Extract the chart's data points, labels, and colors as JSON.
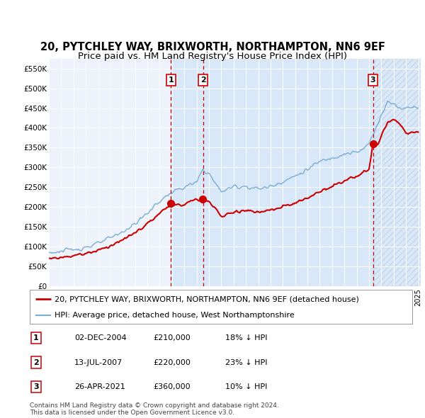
{
  "title": "20, PYTCHLEY WAY, BRIXWORTH, NORTHAMPTON, NN6 9EF",
  "subtitle": "Price paid vs. HM Land Registry's House Price Index (HPI)",
  "xlim": [
    1995.0,
    2025.2
  ],
  "ylim": [
    0,
    575000
  ],
  "yticks": [
    0,
    50000,
    100000,
    150000,
    200000,
    250000,
    300000,
    350000,
    400000,
    450000,
    500000,
    550000
  ],
  "ytick_labels": [
    "£0",
    "£50K",
    "£100K",
    "£150K",
    "£200K",
    "£250K",
    "£300K",
    "£350K",
    "£400K",
    "£450K",
    "£500K",
    "£550K"
  ],
  "transactions": [
    {
      "num": 1,
      "year": 2004.92,
      "price": 210000
    },
    {
      "num": 2,
      "year": 2007.53,
      "price": 220000
    },
    {
      "num": 3,
      "year": 2021.32,
      "price": 360000
    }
  ],
  "legend_line1": "20, PYTCHLEY WAY, BRIXWORTH, NORTHAMPTON, NN6 9EF (detached house)",
  "legend_line2": "HPI: Average price, detached house, West Northamptonshire",
  "table_rows": [
    {
      "num": "1",
      "date": "02-DEC-2004",
      "price": "£210,000",
      "hpi": "18% ↓ HPI"
    },
    {
      "num": "2",
      "date": "13-JUL-2007",
      "price": "£220,000",
      "hpi": "23% ↓ HPI"
    },
    {
      "num": "3",
      "date": "26-APR-2021",
      "price": "£360,000",
      "hpi": "10% ↓ HPI"
    }
  ],
  "footnote": "Contains HM Land Registry data © Crown copyright and database right 2024.\nThis data is licensed under the Open Government Licence v3.0.",
  "bg_color": "#ffffff",
  "plot_bg": "#eef2fb",
  "shade_color": "#d8e8f8",
  "red_color": "#cc0000",
  "blue_color": "#7aadd4",
  "grid_color": "#ffffff",
  "title_fs": 10.5,
  "subtitle_fs": 9.5,
  "tick_fs": 7.5,
  "legend_fs": 8,
  "table_fs": 8,
  "foot_fs": 6.5
}
